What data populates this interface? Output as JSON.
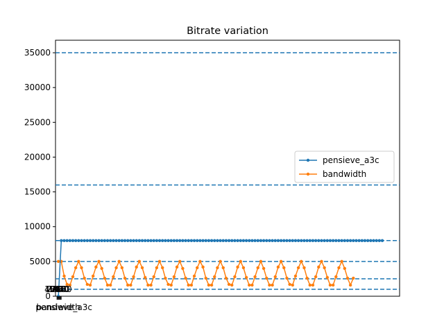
{
  "chart_data": {
    "type": "line",
    "title": "Bitrate variation",
    "xlabel": "",
    "ylabel": "",
    "xlim": [
      -1,
      118
    ],
    "ylim": [
      0,
      36800
    ],
    "yticks": [
      0,
      5000,
      10000,
      15000,
      20000,
      25000,
      30000,
      35000
    ],
    "grid": false,
    "legend_position": "center-right",
    "reference_lines": [
      1000,
      2500,
      5000,
      8000,
      16000,
      35000
    ],
    "reference_line_color": "#1f77b4",
    "x_overlap_labels": [
      "1080",
      "720",
      "1440",
      "2160",
      "360",
      "480",
      "240",
      "bandwidth",
      "pensieve_a3c"
    ],
    "series": [
      {
        "name": "pensieve_a3c",
        "color": "#1f77b4",
        "values": [
          0,
          8000,
          8000,
          8000,
          8000,
          8000,
          8000,
          8000,
          8000,
          8000,
          8000,
          8000,
          8000,
          8000,
          8000,
          8000,
          8000,
          8000,
          8000,
          8000,
          8000,
          8000,
          8000,
          8000,
          8000,
          8000,
          8000,
          8000,
          8000,
          8000,
          8000,
          8000,
          8000,
          8000,
          8000,
          8000,
          8000,
          8000,
          8000,
          8000,
          8000,
          8000,
          8000,
          8000,
          8000,
          8000,
          8000,
          8000,
          8000,
          8000,
          8000,
          8000,
          8000,
          8000,
          8000,
          8000,
          8000,
          8000,
          8000,
          8000,
          8000,
          8000,
          8000,
          8000,
          8000,
          8000,
          8000,
          8000,
          8000,
          8000,
          8000,
          8000,
          8000,
          8000,
          8000,
          8000,
          8000,
          8000,
          8000,
          8000,
          8000,
          8000,
          8000,
          8000,
          8000,
          8000,
          8000,
          8000,
          8000,
          8000,
          8000,
          8000,
          8000,
          8000,
          8000,
          8000,
          8000,
          8000,
          8000,
          8000,
          8000,
          8000,
          8000,
          8000,
          8000,
          8000,
          8000,
          8000,
          8000,
          8000,
          8000,
          8000,
          8000
        ]
      },
      {
        "name": "bandwidth",
        "color": "#ff7f0e",
        "x_start": 0,
        "values": [
          5000,
          5000,
          2900,
          1700,
          1600,
          2800,
          4100,
          5000,
          4100,
          2600,
          1700,
          1600,
          2900,
          4200,
          5000,
          4000,
          2600,
          1600,
          1600,
          2800,
          4100,
          5000,
          4100,
          2600,
          1600,
          1600,
          2800,
          4200,
          5000,
          4100,
          2700,
          1600,
          1600,
          2800,
          4100,
          5000,
          4100,
          2600,
          1700,
          1600,
          2800,
          4200,
          5000,
          4000,
          2600,
          1600,
          1600,
          2900,
          4100,
          5000,
          4200,
          2600,
          1600,
          1600,
          2800,
          4100,
          5000,
          4100,
          2600,
          1700,
          1600,
          2800,
          4200,
          5000,
          4100,
          2700,
          1600,
          1600,
          2800,
          4100,
          5000,
          4000,
          2600,
          1600,
          1600,
          2800,
          4200,
          5000,
          4100,
          2600,
          1700,
          1600,
          2900,
          4100,
          5000,
          4100,
          2600,
          1600,
          1600,
          2800,
          4200,
          5000,
          4100,
          2700,
          1600,
          1600,
          2800,
          4100,
          5000,
          4000,
          2600,
          1600,
          2600
        ]
      }
    ]
  }
}
